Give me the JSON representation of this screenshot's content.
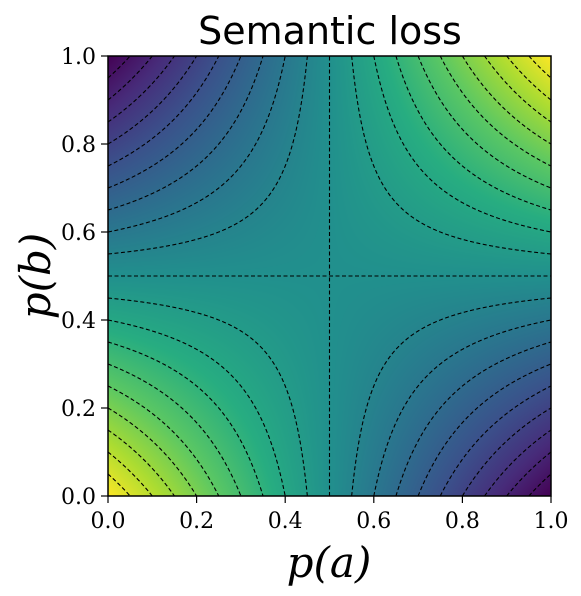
{
  "chart_data": {
    "type": "heatmap",
    "title": "Semantic loss",
    "xlabel": "p(a)",
    "ylabel": "p(b)",
    "xlim": [
      0.0,
      1.0
    ],
    "ylim": [
      0.0,
      1.0
    ],
    "x_ticks": [
      "0.0",
      "0.2",
      "0.4",
      "0.6",
      "0.8",
      "1.0"
    ],
    "y_ticks": [
      "0.0",
      "0.2",
      "0.4",
      "0.6",
      "0.8",
      "1.0"
    ],
    "x_tick_values": [
      0.0,
      0.2,
      0.4,
      0.6,
      0.8,
      1.0
    ],
    "y_tick_values": [
      0.0,
      0.2,
      0.4,
      0.6,
      0.8,
      1.0
    ],
    "colormap": "viridis",
    "function": "z = p(a)*p(b) + (1-p(a))*(1-p(b))",
    "color_range": [
      0.0,
      1.0
    ],
    "contour_levels": [
      0.05,
      0.1,
      0.15,
      0.2,
      0.25,
      0.3,
      0.35,
      0.4,
      0.45,
      0.5,
      0.55,
      0.6,
      0.65,
      0.7,
      0.75,
      0.8,
      0.85,
      0.9,
      0.95
    ],
    "contour_style": "dashed",
    "contour_color": "#000000",
    "grid": false,
    "legend": false
  }
}
